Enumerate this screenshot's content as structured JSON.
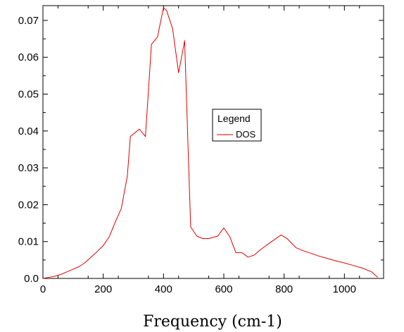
{
  "chart_data": {
    "type": "line",
    "title": "",
    "xlabel": "Frequency (cm-1)",
    "ylabel": "",
    "xlim": [
      0,
      1130
    ],
    "ylim": [
      0,
      0.074
    ],
    "xticks": [
      0,
      200,
      400,
      600,
      800,
      1000
    ],
    "xtick_labels": [
      "0",
      "200",
      "400",
      "600",
      "800",
      "1000"
    ],
    "yticks": [
      0.0,
      0.01,
      0.02,
      0.03,
      0.04,
      0.05,
      0.06,
      0.07
    ],
    "ytick_labels": [
      "0.0",
      "0.01",
      "0.02",
      "0.03",
      "0.04",
      "0.05",
      "0.06",
      "0.07"
    ],
    "grid": false,
    "legend": {
      "title": "Legend",
      "position": "center-right"
    },
    "series": [
      {
        "name": "DOS",
        "color": "#e00000",
        "x": [
          0,
          20,
          40,
          60,
          80,
          100,
          120,
          140,
          160,
          180,
          200,
          220,
          240,
          260,
          280,
          290,
          320,
          340,
          360,
          380,
          400,
          410,
          430,
          450,
          470,
          490,
          510,
          530,
          550,
          580,
          600,
          620,
          640,
          660,
          680,
          700,
          720,
          750,
          790,
          810,
          840,
          870,
          890,
          910,
          940,
          970,
          1000,
          1030,
          1060,
          1090,
          1110
        ],
        "y": [
          0.0,
          0.0003,
          0.0006,
          0.0011,
          0.0018,
          0.0025,
          0.0032,
          0.0043,
          0.0058,
          0.0073,
          0.0089,
          0.0113,
          0.0153,
          0.019,
          0.0278,
          0.0385,
          0.0405,
          0.0385,
          0.0635,
          0.0655,
          0.0735,
          0.0727,
          0.0678,
          0.0558,
          0.0645,
          0.014,
          0.0115,
          0.0108,
          0.0108,
          0.0115,
          0.0137,
          0.0113,
          0.007,
          0.007,
          0.0058,
          0.0063,
          0.0077,
          0.0095,
          0.0118,
          0.0108,
          0.0083,
          0.0073,
          0.0068,
          0.0062,
          0.0055,
          0.0048,
          0.0042,
          0.0035,
          0.0028,
          0.0018,
          0.0003
        ]
      }
    ]
  }
}
